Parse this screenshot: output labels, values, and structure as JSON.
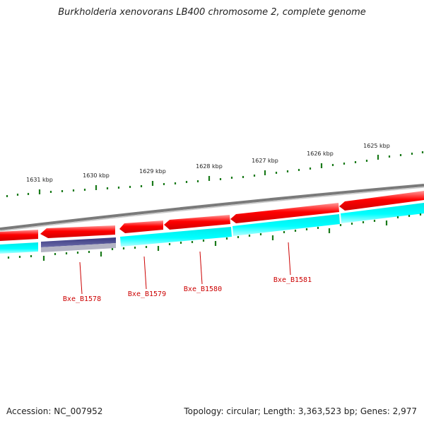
{
  "title": "Burkholderia xenovorans LB400 chromosome 2, complete genome",
  "accession": "Accession: NC_007952",
  "topology": "Topology: circular; Length: 3,363,523 bp; Genes: 2,977",
  "ruler_labels": [
    "1631 kbp",
    "1630 kbp",
    "1629 kbp",
    "1628 kbp",
    "1627 kbp",
    "1626 kbp",
    "1625 kbp"
  ],
  "gene_labels": [
    "Bxe_B1578",
    "Bxe_B1579",
    "Bxe_B1580",
    "Bxe_B1581"
  ],
  "colors": {
    "forward_strand": "#ff0000",
    "reverse_strand": "#00ffff",
    "selected_gene": "#4a4a8c",
    "backbone": "#808080",
    "tick": "#1a7a1a",
    "label": "#cc0000"
  }
}
